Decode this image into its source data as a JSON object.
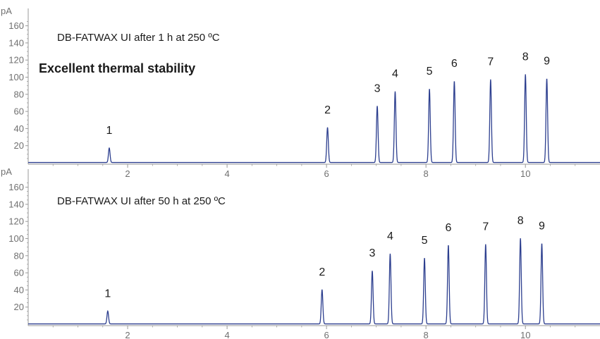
{
  "headline": "Excellent thermal stability",
  "colors": {
    "trace": "#2d3f8f",
    "axis": "#9a9a9a",
    "text": "#1a1a1a",
    "tick_text": "#707070"
  },
  "chart_data": [
    {
      "type": "line",
      "title": "DB-FATWAX UI after 1 h at 250 ºC",
      "ylabel": "pA",
      "xlabel": "",
      "xlim": [
        0,
        11.5
      ],
      "ylim": [
        0,
        170
      ],
      "x_ticks": [
        2,
        4,
        6,
        8,
        10
      ],
      "y_ticks": [
        20,
        40,
        60,
        80,
        100,
        120,
        140,
        160
      ],
      "grid": false,
      "baseline": 2,
      "peaks": [
        {
          "label": "1",
          "x": 1.63,
          "y": 17
        },
        {
          "label": "2",
          "x": 6.02,
          "y": 41
        },
        {
          "label": "3",
          "x": 7.02,
          "y": 66
        },
        {
          "label": "4",
          "x": 7.38,
          "y": 83
        },
        {
          "label": "5",
          "x": 8.07,
          "y": 86
        },
        {
          "label": "6",
          "x": 8.57,
          "y": 95
        },
        {
          "label": "7",
          "x": 9.3,
          "y": 97
        },
        {
          "label": "8",
          "x": 10.0,
          "y": 103
        },
        {
          "label": "9",
          "x": 10.43,
          "y": 98
        }
      ]
    },
    {
      "type": "line",
      "title": "DB-FATWAX UI after 50 h at 250 ºC",
      "ylabel": "pA",
      "xlabel": "",
      "xlim": [
        0,
        11.5
      ],
      "ylim": [
        0,
        170
      ],
      "x_ticks": [
        2,
        4,
        6,
        8,
        10
      ],
      "y_ticks": [
        20,
        40,
        60,
        80,
        100,
        120,
        140,
        160
      ],
      "grid": false,
      "baseline": 2,
      "peaks": [
        {
          "label": "1",
          "x": 1.6,
          "y": 15
        },
        {
          "label": "2",
          "x": 5.91,
          "y": 40
        },
        {
          "label": "3",
          "x": 6.92,
          "y": 62
        },
        {
          "label": "4",
          "x": 7.28,
          "y": 82
        },
        {
          "label": "5",
          "x": 7.97,
          "y": 77
        },
        {
          "label": "6",
          "x": 8.45,
          "y": 92
        },
        {
          "label": "7",
          "x": 9.2,
          "y": 93
        },
        {
          "label": "8",
          "x": 9.9,
          "y": 100
        },
        {
          "label": "9",
          "x": 10.33,
          "y": 94
        }
      ]
    }
  ]
}
